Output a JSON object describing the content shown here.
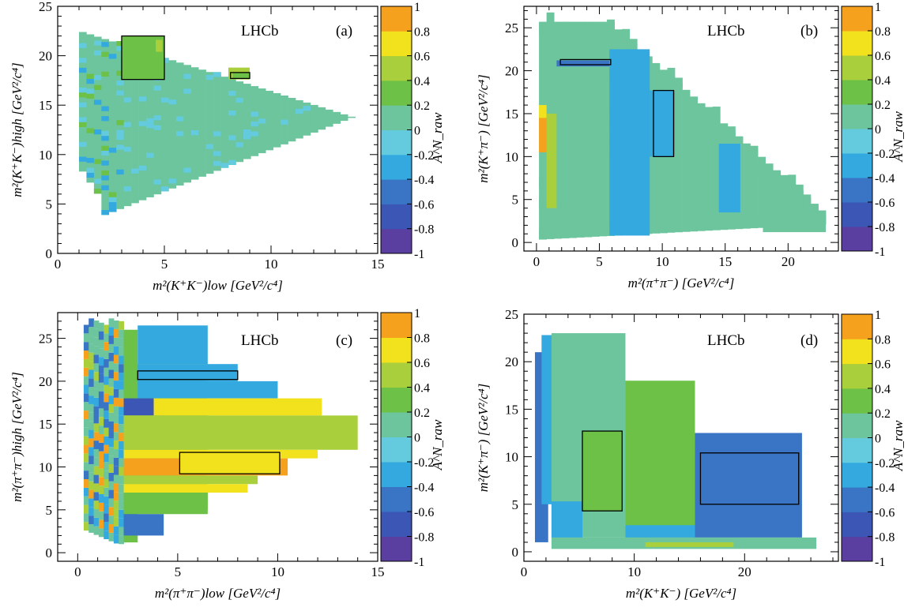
{
  "figure": {
    "colorbar_ticks": [
      "1",
      "0.8",
      "0.6",
      "0.4",
      "0.2",
      "0",
      "-0.2",
      "-0.4",
      "-0.6",
      "-0.8",
      "-1"
    ],
    "colorbar_label": "A^N_raw",
    "watermark": "LHCb"
  },
  "chart_data": [
    {
      "type": "heatmap",
      "panel": "(a)",
      "xlabel": "m²(K⁺K⁻)low [GeV²/c⁴]",
      "ylabel": "m²(K⁺K⁻)high [GeV²/c⁴]",
      "xlim": [
        0,
        15
      ],
      "ylim": [
        0,
        25
      ],
      "xticks": [
        0,
        5,
        10,
        15
      ],
      "yticks": [
        0,
        5,
        10,
        15,
        20,
        25
      ],
      "zlim": [
        -1,
        1
      ],
      "shape": "phase-space triangle, apex near (13.8, 13.8); mostly A≈0 (green), sparse ±0.3 bins",
      "regions": [
        {
          "x": [
            3.0,
            5.0
          ],
          "y": [
            17.6,
            22.0
          ],
          "value": 0.2
        },
        {
          "x": [
            4.6,
            4.9
          ],
          "y": [
            20.4,
            21.6
          ],
          "value": 0.5
        },
        {
          "x": [
            8.0,
            9.0
          ],
          "y": [
            17.6,
            18.8
          ],
          "value": 0.4
        }
      ],
      "boxes": [
        {
          "x": [
            3.0,
            5.0
          ],
          "y": [
            17.6,
            22.0
          ]
        },
        {
          "x": [
            8.1,
            9.0
          ],
          "y": [
            17.7,
            18.3
          ]
        }
      ]
    },
    {
      "type": "heatmap",
      "panel": "(b)",
      "xlabel": "m²(π⁺π⁻) [GeV²/c⁴]",
      "ylabel": "m²(K⁺π⁻) [GeV²/c⁴]",
      "xlim": [
        -1,
        24
      ],
      "ylim": [
        -1,
        27.5
      ],
      "xticks": [
        0,
        5,
        10,
        15,
        20
      ],
      "yticks": [
        0,
        5,
        10,
        15,
        20,
        25
      ],
      "zlim": [
        -1,
        1
      ],
      "shape": "phase-space triangle, left edge near x≈0.3, tail to (23, 2.8)",
      "regions": [
        {
          "x": [
            0.2,
            0.8
          ],
          "y": [
            10.5,
            14.5
          ],
          "value": 0.9
        },
        {
          "x": [
            0.2,
            0.8
          ],
          "y": [
            14.5,
            16.0
          ],
          "value": 0.6
        },
        {
          "x": [
            0.8,
            1.6
          ],
          "y": [
            4.0,
            15.0
          ],
          "value": 0.5
        },
        {
          "x": [
            1.6,
            5.8
          ],
          "y": [
            20.5,
            21.2
          ],
          "value": -0.5
        },
        {
          "x": [
            5.8,
            9.0
          ],
          "y": [
            0.8,
            22.5
          ],
          "value": -0.3
        },
        {
          "x": [
            9.0,
            11.0
          ],
          "y": [
            10.0,
            17.7
          ],
          "value": -0.25
        },
        {
          "x": [
            14.5,
            16.2
          ],
          "y": [
            3.5,
            11.5
          ],
          "value": -0.3
        }
      ],
      "boxes": [
        {
          "x": [
            1.9,
            5.9
          ],
          "y": [
            20.7,
            21.3
          ]
        },
        {
          "x": [
            9.3,
            10.9
          ],
          "y": [
            10.0,
            17.7
          ]
        }
      ]
    },
    {
      "type": "heatmap",
      "panel": "(c)",
      "xlabel": "m²(π⁺π⁻)low [GeV²/c⁴]",
      "ylabel": "m²(π⁺π⁻)high [GeV²/c⁴]",
      "xlim": [
        -1,
        15
      ],
      "ylim": [
        -1,
        28
      ],
      "xticks": [
        0,
        5,
        10,
        15
      ],
      "yticks": [
        0,
        5,
        10,
        15,
        20,
        25
      ],
      "zlim": [
        -1,
        1
      ],
      "shape": "coarse horizontal bands, left edge near x≈0.3",
      "regions": [
        {
          "x": [
            3.0,
            6.5
          ],
          "y": [
            22.0,
            26.5
          ],
          "value": -0.3
        },
        {
          "x": [
            3.0,
            8.0
          ],
          "y": [
            20.0,
            22.0
          ],
          "value": -0.35
        },
        {
          "x": [
            3.0,
            10.0
          ],
          "y": [
            18.0,
            20.0
          ],
          "value": -0.3
        },
        {
          "x": [
            2.3,
            3.8
          ],
          "y": [
            16.0,
            18.0
          ],
          "value": -0.7
        },
        {
          "x": [
            3.8,
            12.2
          ],
          "y": [
            16.0,
            18.0
          ],
          "value": 0.65
        },
        {
          "x": [
            2.3,
            4.2
          ],
          "y": [
            14.8,
            16.0
          ],
          "value": 0.5
        },
        {
          "x": [
            2.3,
            14.0
          ],
          "y": [
            12.0,
            16.0
          ],
          "value": 0.5
        },
        {
          "x": [
            2.3,
            12.0
          ],
          "y": [
            11.0,
            12.0
          ],
          "value": 0.75
        },
        {
          "x": [
            2.3,
            10.5
          ],
          "y": [
            9.0,
            11.0
          ],
          "value": 0.85
        },
        {
          "x": [
            2.3,
            9.0
          ],
          "y": [
            8.0,
            9.0
          ],
          "value": 0.5
        },
        {
          "x": [
            2.3,
            8.5
          ],
          "y": [
            7.0,
            8.0
          ],
          "value": 0.65
        },
        {
          "x": [
            2.3,
            6.5
          ],
          "y": [
            5.0,
            7.0
          ],
          "value": 0.3
        },
        {
          "x": [
            2.3,
            4.3
          ],
          "y": [
            2.0,
            4.5
          ],
          "value": -0.55
        }
      ],
      "boxes": [
        {
          "x": [
            3.0,
            8.0
          ],
          "y": [
            20.2,
            21.2
          ]
        },
        {
          "x": [
            5.1,
            10.1
          ],
          "y": [
            9.2,
            11.7
          ]
        }
      ]
    },
    {
      "type": "heatmap",
      "panel": "(d)",
      "xlabel": "m²(K⁺K⁻) [GeV²/c⁴]",
      "ylabel": "m²(K⁺π⁻) [GeV²/c⁴]",
      "xlim": [
        0,
        28.5
      ],
      "ylim": [
        -1,
        25
      ],
      "xticks": [
        0,
        10,
        20
      ],
      "yticks": [
        0,
        5,
        10,
        15,
        20,
        25
      ],
      "zlim": [
        -1,
        1
      ],
      "shape": "large rectangular bins",
      "regions": [
        {
          "x": [
            1.0,
            2.2
          ],
          "y": [
            1.0,
            21.0
          ],
          "value": -0.5
        },
        {
          "x": [
            1.6,
            3.0
          ],
          "y": [
            5.0,
            22.8
          ],
          "value": -0.35
        },
        {
          "x": [
            2.5,
            9.2
          ],
          "y": [
            1.5,
            23.0
          ],
          "value": 0.15
        },
        {
          "x": [
            2.5,
            5.3
          ],
          "y": [
            1.5,
            5.3
          ],
          "value": -0.35
        },
        {
          "x": [
            5.3,
            8.9
          ],
          "y": [
            4.3,
            12.7
          ],
          "value": 0.2
        },
        {
          "x": [
            9.2,
            15.5
          ],
          "y": [
            1.5,
            18.0
          ],
          "value": 0.3
        },
        {
          "x": [
            9.2,
            15.5
          ],
          "y": [
            1.5,
            2.8
          ],
          "value": -0.3
        },
        {
          "x": [
            15.5,
            25.2
          ],
          "y": [
            1.5,
            12.5
          ],
          "value": -0.6
        },
        {
          "x": [
            2.5,
            26.5
          ],
          "y": [
            0.3,
            1.5
          ],
          "value": 0.1
        },
        {
          "x": [
            11.0,
            19.0
          ],
          "y": [
            0.5,
            1.0
          ],
          "value": 0.45
        }
      ],
      "boxes": [
        {
          "x": [
            5.3,
            8.9
          ],
          "y": [
            4.3,
            12.7
          ]
        },
        {
          "x": [
            16.0,
            24.9
          ],
          "y": [
            5.0,
            10.4
          ]
        }
      ]
    }
  ]
}
